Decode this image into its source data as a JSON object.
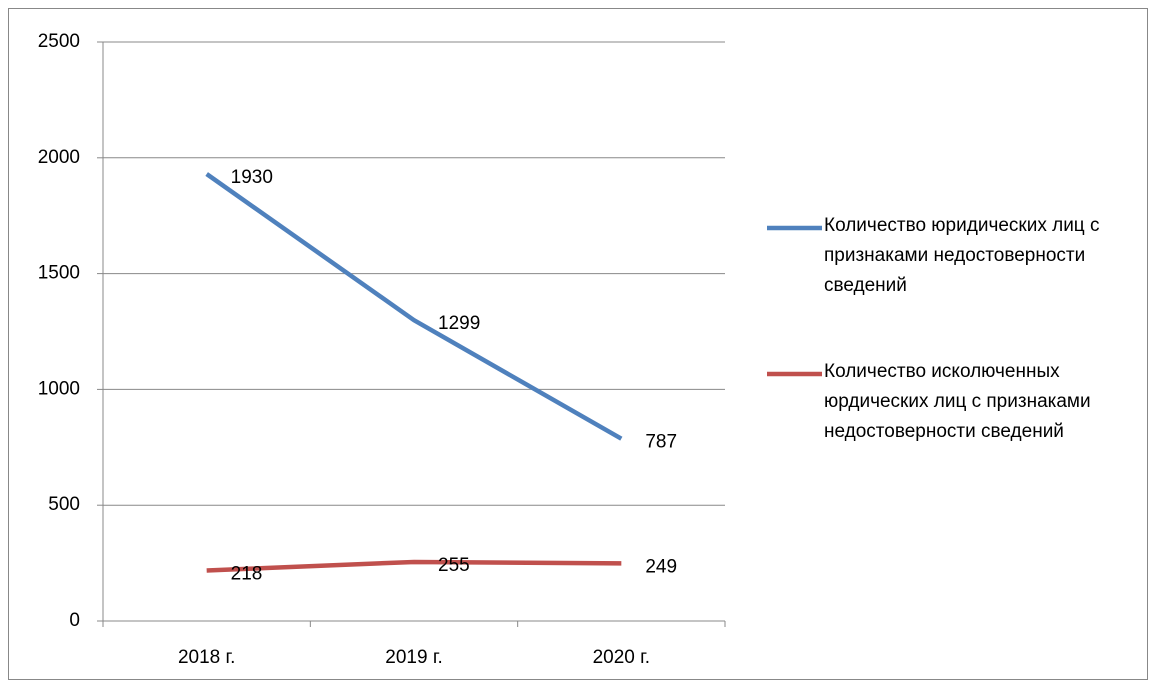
{
  "chart_data": {
    "type": "line",
    "categories": [
      "2018 г.",
      "2019 г.",
      "2020 г."
    ],
    "series": [
      {
        "name": "Количество юридических лиц с признаками недостоверности сведений",
        "color": "#4f81bd",
        "values": [
          1930,
          1299,
          787
        ]
      },
      {
        "name": "Количество исколюченных юрдических лиц с признаками недостоверности сведений",
        "color": "#c0504d",
        "values": [
          218,
          255,
          249
        ]
      }
    ],
    "ylim": [
      0,
      2500
    ],
    "yticks": [
      0,
      500,
      1000,
      1500,
      2000,
      2500
    ],
    "grid": true,
    "legend": "right"
  }
}
